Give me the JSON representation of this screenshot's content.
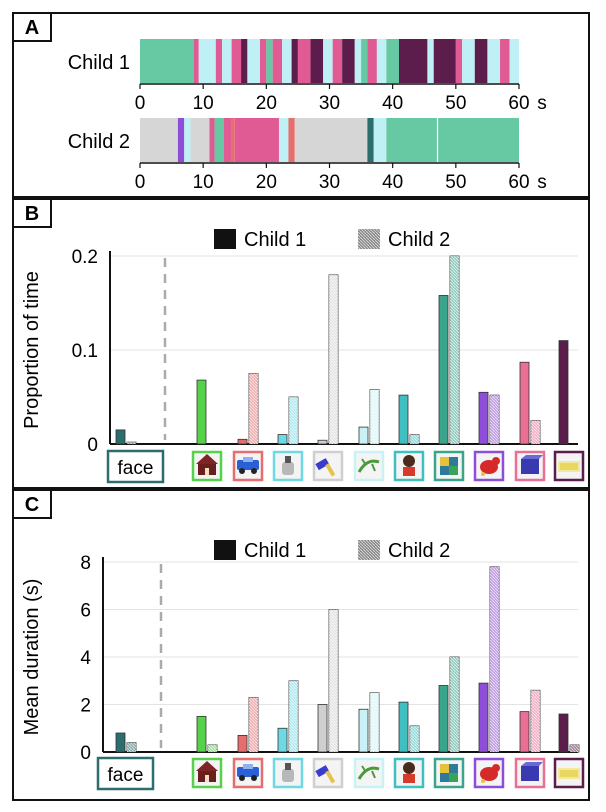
{
  "panels": {
    "A": {
      "label": "A"
    },
    "B": {
      "label": "B"
    },
    "C": {
      "label": "C"
    }
  },
  "colors": {
    "face": "#2c6e6e",
    "green": "#55d24a",
    "red": "#e76e6e",
    "cyan": "#6fd9e3",
    "gray": "#cfcfcf",
    "lightcyan": "#c8f2f6",
    "teal": "#3fbfbf",
    "seagreen": "#3aa58c",
    "purple": "#8f4ed9",
    "pink": "#ea6f95",
    "plum": "#5b1d4a",
    "timeline_green": "#66c9a4",
    "timeline_cyan": "#bff0f5",
    "timeline_pink": "#e05a93",
    "timeline_plum": "#5c1d4d",
    "timeline_gray": "#d6d6d6"
  },
  "chart_data": [
    {
      "type": "timeline",
      "panel": "A",
      "xlabel": "s",
      "xlim": [
        0,
        60
      ],
      "xticks": [
        0,
        10,
        20,
        30,
        40,
        50,
        60
      ],
      "series": [
        {
          "name": "Child 1",
          "segments": [
            {
              "start": 0,
              "end": 8.5,
              "color": "timeline_green"
            },
            {
              "start": 8.5,
              "end": 9.3,
              "color": "timeline_pink"
            },
            {
              "start": 9.3,
              "end": 12.0,
              "color": "timeline_cyan"
            },
            {
              "start": 12.0,
              "end": 13.0,
              "color": "timeline_pink"
            },
            {
              "start": 13.0,
              "end": 14.5,
              "color": "timeline_cyan"
            },
            {
              "start": 14.5,
              "end": 16.0,
              "color": "timeline_pink"
            },
            {
              "start": 16.0,
              "end": 17.0,
              "color": "timeline_plum"
            },
            {
              "start": 17.0,
              "end": 19.0,
              "color": "timeline_cyan"
            },
            {
              "start": 19.0,
              "end": 20.0,
              "color": "timeline_pink"
            },
            {
              "start": 20.0,
              "end": 21.0,
              "color": "timeline_green"
            },
            {
              "start": 21.0,
              "end": 22.5,
              "color": "timeline_pink"
            },
            {
              "start": 22.5,
              "end": 24.0,
              "color": "timeline_cyan"
            },
            {
              "start": 24.0,
              "end": 25.0,
              "color": "timeline_plum"
            },
            {
              "start": 25.0,
              "end": 27.0,
              "color": "timeline_pink"
            },
            {
              "start": 27.0,
              "end": 29.0,
              "color": "timeline_plum"
            },
            {
              "start": 29.0,
              "end": 30.5,
              "color": "timeline_cyan"
            },
            {
              "start": 30.5,
              "end": 32.0,
              "color": "timeline_pink"
            },
            {
              "start": 32.0,
              "end": 34.0,
              "color": "timeline_plum"
            },
            {
              "start": 34.0,
              "end": 35.0,
              "color": "timeline_cyan"
            },
            {
              "start": 35.0,
              "end": 36.0,
              "color": "timeline_green"
            },
            {
              "start": 36.0,
              "end": 37.5,
              "color": "timeline_pink"
            },
            {
              "start": 37.5,
              "end": 39.0,
              "color": "timeline_cyan"
            },
            {
              "start": 39.0,
              "end": 41.0,
              "color": "timeline_green"
            },
            {
              "start": 41.0,
              "end": 45.5,
              "color": "timeline_plum"
            },
            {
              "start": 45.5,
              "end": 46.5,
              "color": "timeline_cyan"
            },
            {
              "start": 46.5,
              "end": 50.0,
              "color": "timeline_plum"
            },
            {
              "start": 50.0,
              "end": 51.0,
              "color": "timeline_pink"
            },
            {
              "start": 51.0,
              "end": 53.0,
              "color": "timeline_cyan"
            },
            {
              "start": 53.0,
              "end": 55.0,
              "color": "timeline_plum"
            },
            {
              "start": 55.0,
              "end": 57.0,
              "color": "timeline_cyan"
            },
            {
              "start": 57.0,
              "end": 58.5,
              "color": "timeline_pink"
            },
            {
              "start": 58.5,
              "end": 60.0,
              "color": "timeline_cyan"
            }
          ]
        },
        {
          "name": "Child 2",
          "segments": [
            {
              "start": 0,
              "end": 6.0,
              "color": "timeline_gray"
            },
            {
              "start": 6.0,
              "end": 7.0,
              "color": "purple"
            },
            {
              "start": 7.0,
              "end": 8.0,
              "color": "timeline_cyan"
            },
            {
              "start": 8.0,
              "end": 11.0,
              "color": "timeline_gray"
            },
            {
              "start": 11.0,
              "end": 11.8,
              "color": "timeline_pink"
            },
            {
              "start": 11.8,
              "end": 13.3,
              "color": "timeline_green"
            },
            {
              "start": 13.3,
              "end": 14.5,
              "color": "timeline_pink"
            },
            {
              "start": 14.5,
              "end": 15.0,
              "color": "red"
            },
            {
              "start": 15.0,
              "end": 22.0,
              "color": "timeline_pink"
            },
            {
              "start": 22.0,
              "end": 23.5,
              "color": "timeline_cyan"
            },
            {
              "start": 23.5,
              "end": 24.5,
              "color": "red"
            },
            {
              "start": 24.5,
              "end": 36.0,
              "color": "timeline_gray"
            },
            {
              "start": 36.0,
              "end": 37.0,
              "color": "face"
            },
            {
              "start": 37.0,
              "end": 39.0,
              "color": "timeline_cyan"
            },
            {
              "start": 39.0,
              "end": 47.0,
              "color": "timeline_green"
            },
            {
              "start": 47.2,
              "end": 60.0,
              "color": "timeline_green"
            }
          ]
        }
      ]
    },
    {
      "type": "bar",
      "panel": "B",
      "ylabel": "Proportion of time",
      "ylim": [
        0,
        0.2
      ],
      "yticks": [
        {
          "value": 0,
          "label": "0"
        },
        {
          "value": 0.1,
          "label": "0.1"
        },
        {
          "value": 0.2,
          "label": "0.2"
        }
      ],
      "categories": [
        "face",
        "house",
        "car",
        "bottle",
        "hammer",
        "lizard",
        "doll",
        "cube",
        "dog",
        "box",
        "tray"
      ],
      "category_colors": [
        "face",
        "green",
        "red",
        "cyan",
        "gray",
        "lightcyan",
        "teal",
        "seagreen",
        "purple",
        "pink",
        "plum"
      ],
      "series": [
        {
          "name": "Child 1",
          "values": [
            0.015,
            0.068,
            0.005,
            0.01,
            0.004,
            0.018,
            0.052,
            0.158,
            0.055,
            0.087,
            0.11
          ]
        },
        {
          "name": "Child 2",
          "values": [
            0.002,
            0.0,
            0.075,
            0.05,
            0.18,
            0.058,
            0.01,
            0.2,
            0.052,
            0.025,
            0.0
          ]
        }
      ]
    },
    {
      "type": "bar",
      "panel": "C",
      "ylabel": "Mean duration (s)",
      "ylim": [
        0,
        8
      ],
      "yticks": [
        {
          "value": 0,
          "label": "0"
        },
        {
          "value": 2,
          "label": "2"
        },
        {
          "value": 4,
          "label": "4"
        },
        {
          "value": 6,
          "label": "6"
        },
        {
          "value": 8,
          "label": "8"
        }
      ],
      "categories": [
        "face",
        "house",
        "car",
        "bottle",
        "hammer",
        "lizard",
        "doll",
        "cube",
        "dog",
        "box",
        "tray"
      ],
      "category_colors": [
        "face",
        "green",
        "red",
        "cyan",
        "gray",
        "lightcyan",
        "teal",
        "seagreen",
        "purple",
        "pink",
        "plum"
      ],
      "series": [
        {
          "name": "Child 1",
          "values": [
            0.8,
            1.5,
            0.7,
            1.0,
            2.0,
            1.8,
            2.1,
            2.8,
            2.9,
            1.7,
            1.6
          ]
        },
        {
          "name": "Child 2",
          "values": [
            0.4,
            0.3,
            2.3,
            3.0,
            6.0,
            2.5,
            1.1,
            4.0,
            7.8,
            2.6,
            0.3
          ]
        }
      ]
    }
  ]
}
